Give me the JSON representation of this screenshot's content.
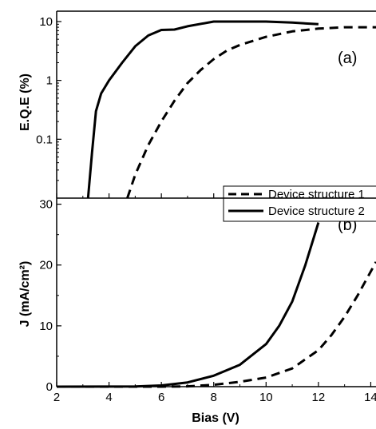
{
  "chart_data": [
    {
      "type": "line",
      "panel_label": "(a)",
      "xlabel": "",
      "ylabel": "E.Q.E (%)",
      "xlim": [
        2,
        14.2
      ],
      "ylim": [
        0.01,
        15
      ],
      "yscale": "log",
      "x_ticks": [
        2,
        4,
        6,
        8,
        10,
        12,
        14
      ],
      "y_ticks": [
        {
          "value": 0.1,
          "label": "0.1"
        },
        {
          "value": 1,
          "label": "1"
        },
        {
          "value": 10,
          "label": "10"
        }
      ],
      "legend_position": "bottom-right",
      "series": [
        {
          "name": "Device structure 1",
          "style": "dashed",
          "color": "#000000",
          "x": [
            4.7,
            5.0,
            5.5,
            6.0,
            6.5,
            7.0,
            7.5,
            8.0,
            8.5,
            9.0,
            10.0,
            11.0,
            12.0,
            13.0,
            14.2
          ],
          "y": [
            0.01,
            0.025,
            0.08,
            0.2,
            0.45,
            0.9,
            1.5,
            2.3,
            3.2,
            4.0,
            5.5,
            6.8,
            7.6,
            8.0,
            8.0
          ]
        },
        {
          "name": "Device structure 2",
          "style": "solid",
          "color": "#000000",
          "x": [
            3.2,
            3.35,
            3.5,
            3.7,
            4.0,
            4.5,
            5.0,
            5.5,
            6.0,
            6.5,
            7.0,
            8.0,
            9.0,
            10.0,
            11.0,
            12.0
          ],
          "y": [
            0.01,
            0.06,
            0.3,
            0.6,
            1.0,
            2.0,
            3.8,
            5.8,
            7.2,
            7.3,
            8.3,
            10.0,
            10.0,
            10.0,
            9.6,
            9.0
          ]
        }
      ]
    },
    {
      "type": "line",
      "panel_label": "(b)",
      "xlabel": "Bias (V)",
      "ylabel": "J (mA/cm²)",
      "xlim": [
        2,
        14.2
      ],
      "ylim": [
        0,
        31
      ],
      "yscale": "linear",
      "x_ticks": [
        2,
        4,
        6,
        8,
        10,
        12,
        14
      ],
      "y_ticks": [
        {
          "value": 0,
          "label": "0"
        },
        {
          "value": 10,
          "label": "10"
        },
        {
          "value": 20,
          "label": "20"
        },
        {
          "value": 30,
          "label": "30"
        }
      ],
      "series": [
        {
          "name": "Device structure 1",
          "style": "dashed",
          "color": "#000000",
          "x": [
            2,
            6.0,
            7.0,
            8.0,
            9.0,
            10.0,
            11.0,
            12.0,
            12.5,
            13.0,
            13.5,
            14.2
          ],
          "y": [
            0,
            0,
            0.05,
            0.3,
            0.8,
            1.5,
            3.0,
            6.0,
            8.5,
            11.5,
            15.0,
            20.5
          ]
        },
        {
          "name": "Device structure 2",
          "style": "solid",
          "color": "#000000",
          "x": [
            2,
            5.0,
            6.0,
            7.0,
            8.0,
            9.0,
            10.0,
            10.5,
            11.0,
            11.5,
            12.0
          ],
          "y": [
            0,
            0.02,
            0.2,
            0.7,
            1.8,
            3.6,
            7.0,
            10.0,
            14.0,
            20.0,
            27.0
          ]
        }
      ]
    }
  ]
}
